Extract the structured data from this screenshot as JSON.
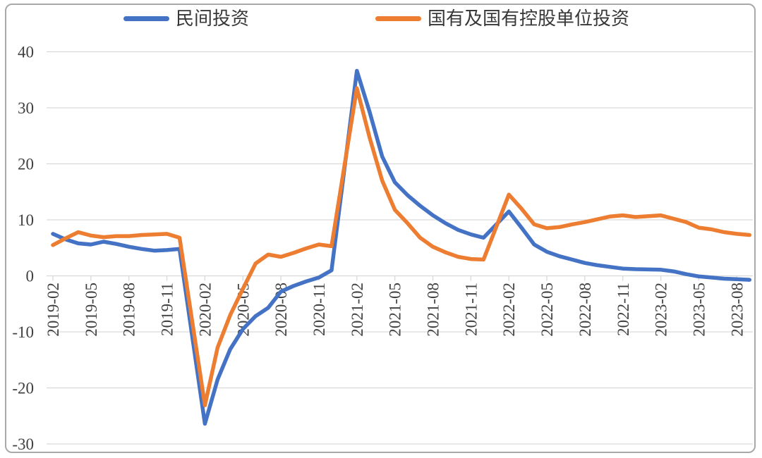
{
  "colors": {
    "series_private": "#4472C4",
    "series_state": "#ED7D31",
    "gridline": "#D9D9D9",
    "axis_label": "#404040",
    "legend_text": "#383838",
    "frame_border": "#A9A9A9"
  },
  "chart_data": {
    "type": "line",
    "title": "",
    "xlabel": "",
    "ylabel": "",
    "ylim": [
      -30,
      40
    ],
    "ytick_step": 10,
    "grid": true,
    "legend_position": "top",
    "y_tick_labels": [
      "40",
      "30",
      "20",
      "10",
      "0",
      "-10",
      "-20",
      "-30"
    ],
    "x_tick_labels": [
      "2019-02",
      "2019-05",
      "2019-08",
      "2019-11",
      "2020-02",
      "2020-05",
      "2020-08",
      "2020-11",
      "2021-02",
      "2021-05",
      "2021-08",
      "2021-11",
      "2022-02",
      "2022-05",
      "2022-08",
      "2022-11",
      "2023-02",
      "2023-05",
      "2023-08"
    ],
    "x": [
      "2019-02",
      "2019-03",
      "2019-04",
      "2019-05",
      "2019-06",
      "2019-07",
      "2019-08",
      "2019-09",
      "2019-10",
      "2019-11",
      "2019-12",
      "2020-02",
      "2020-03",
      "2020-04",
      "2020-05",
      "2020-06",
      "2020-07",
      "2020-08",
      "2020-09",
      "2020-10",
      "2020-11",
      "2020-12",
      "2021-02",
      "2021-03",
      "2021-04",
      "2021-05",
      "2021-06",
      "2021-07",
      "2021-08",
      "2021-09",
      "2021-10",
      "2021-11",
      "2021-12",
      "2022-02",
      "2022-03",
      "2022-04",
      "2022-05",
      "2022-06",
      "2022-07",
      "2022-08",
      "2022-09",
      "2022-10",
      "2022-11",
      "2022-12",
      "2023-02",
      "2023-03",
      "2023-04",
      "2023-05",
      "2023-06",
      "2023-07",
      "2023-08",
      "2023-09"
    ],
    "series": [
      {
        "name": "民间投资",
        "color": "#4472C4",
        "values": [
          7.5,
          6.5,
          5.8,
          5.6,
          6.1,
          5.7,
          5.2,
          4.8,
          4.5,
          4.6,
          4.8,
          -26.4,
          -18.5,
          -13.1,
          -9.5,
          -7.2,
          -5.7,
          -2.8,
          -1.8,
          -1.0,
          -0.3,
          1.0,
          36.6,
          29.3,
          21.3,
          16.7,
          14.4,
          12.5,
          10.8,
          9.4,
          8.2,
          7.4,
          6.8,
          11.5,
          8.6,
          5.6,
          4.3,
          3.5,
          2.9,
          2.3,
          1.9,
          1.6,
          1.3,
          1.2,
          1.1,
          0.8,
          0.3,
          -0.1,
          -0.3,
          -0.5,
          -0.6,
          -0.7
        ]
      },
      {
        "name": "国有及国有控股单位投资",
        "color": "#ED7D31",
        "values": [
          5.5,
          6.7,
          7.8,
          7.2,
          6.9,
          7.1,
          7.1,
          7.3,
          7.4,
          7.5,
          6.8,
          -23.1,
          -12.8,
          -7.0,
          -2.3,
          2.2,
          3.8,
          3.4,
          4.1,
          4.9,
          5.6,
          5.3,
          33.5,
          24.7,
          17.0,
          11.8,
          9.4,
          6.8,
          5.2,
          4.2,
          3.4,
          3.0,
          2.9,
          14.5,
          12.0,
          9.2,
          8.5,
          8.7,
          9.2,
          9.6,
          10.1,
          10.6,
          10.8,
          10.5,
          10.8,
          10.2,
          9.6,
          8.6,
          8.3,
          7.8,
          7.5,
          7.3
        ]
      }
    ]
  }
}
